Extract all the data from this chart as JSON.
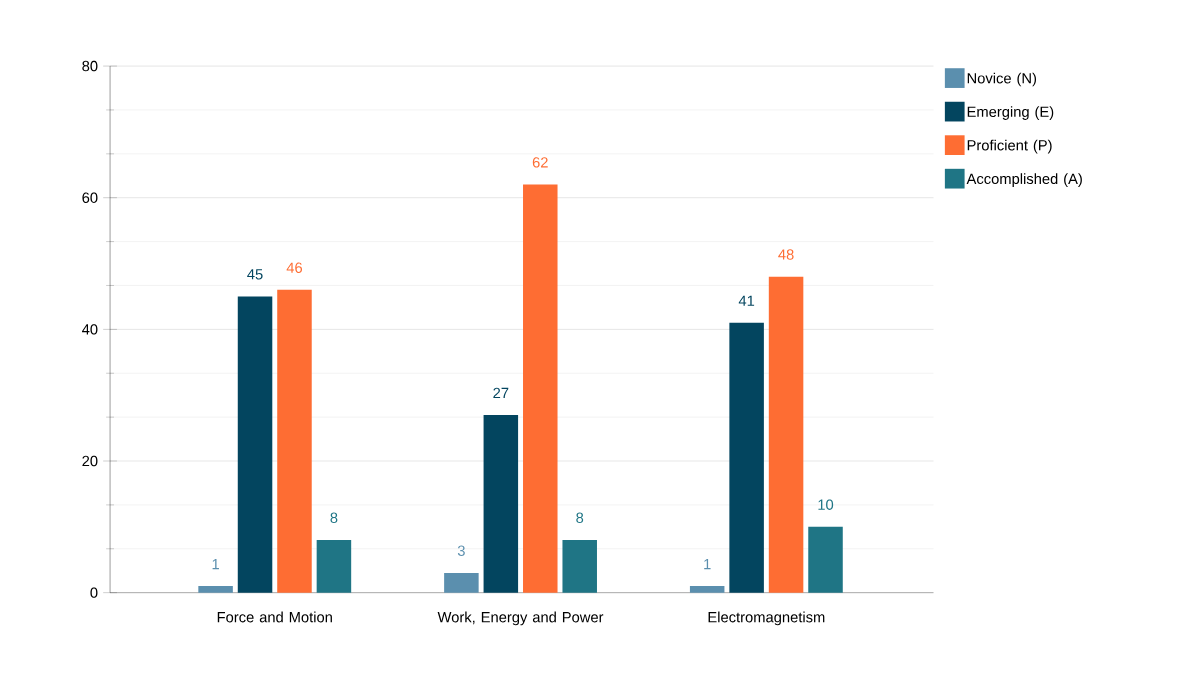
{
  "chart_data": {
    "type": "bar",
    "categories": [
      "Force and Motion",
      "Work, Energy and Power",
      "Electromagnetism"
    ],
    "series": [
      {
        "name": "Novice (N)",
        "color": "#5b8fae",
        "values": [
          1,
          3,
          1
        ]
      },
      {
        "name": "Emerging (E)",
        "color": "#03455f",
        "values": [
          45,
          27,
          41
        ]
      },
      {
        "name": "Proficient (P)",
        "color": "#fe6d33",
        "values": [
          46,
          62,
          48
        ]
      },
      {
        "name": "Accomplished (A)",
        "color": "#1f7585",
        "values": [
          8,
          8,
          10
        ]
      }
    ],
    "ylim": [
      0,
      80
    ],
    "yticks": [
      0,
      20,
      40,
      60,
      80
    ],
    "grid": "y",
    "legend": "right",
    "data_labels": true
  }
}
